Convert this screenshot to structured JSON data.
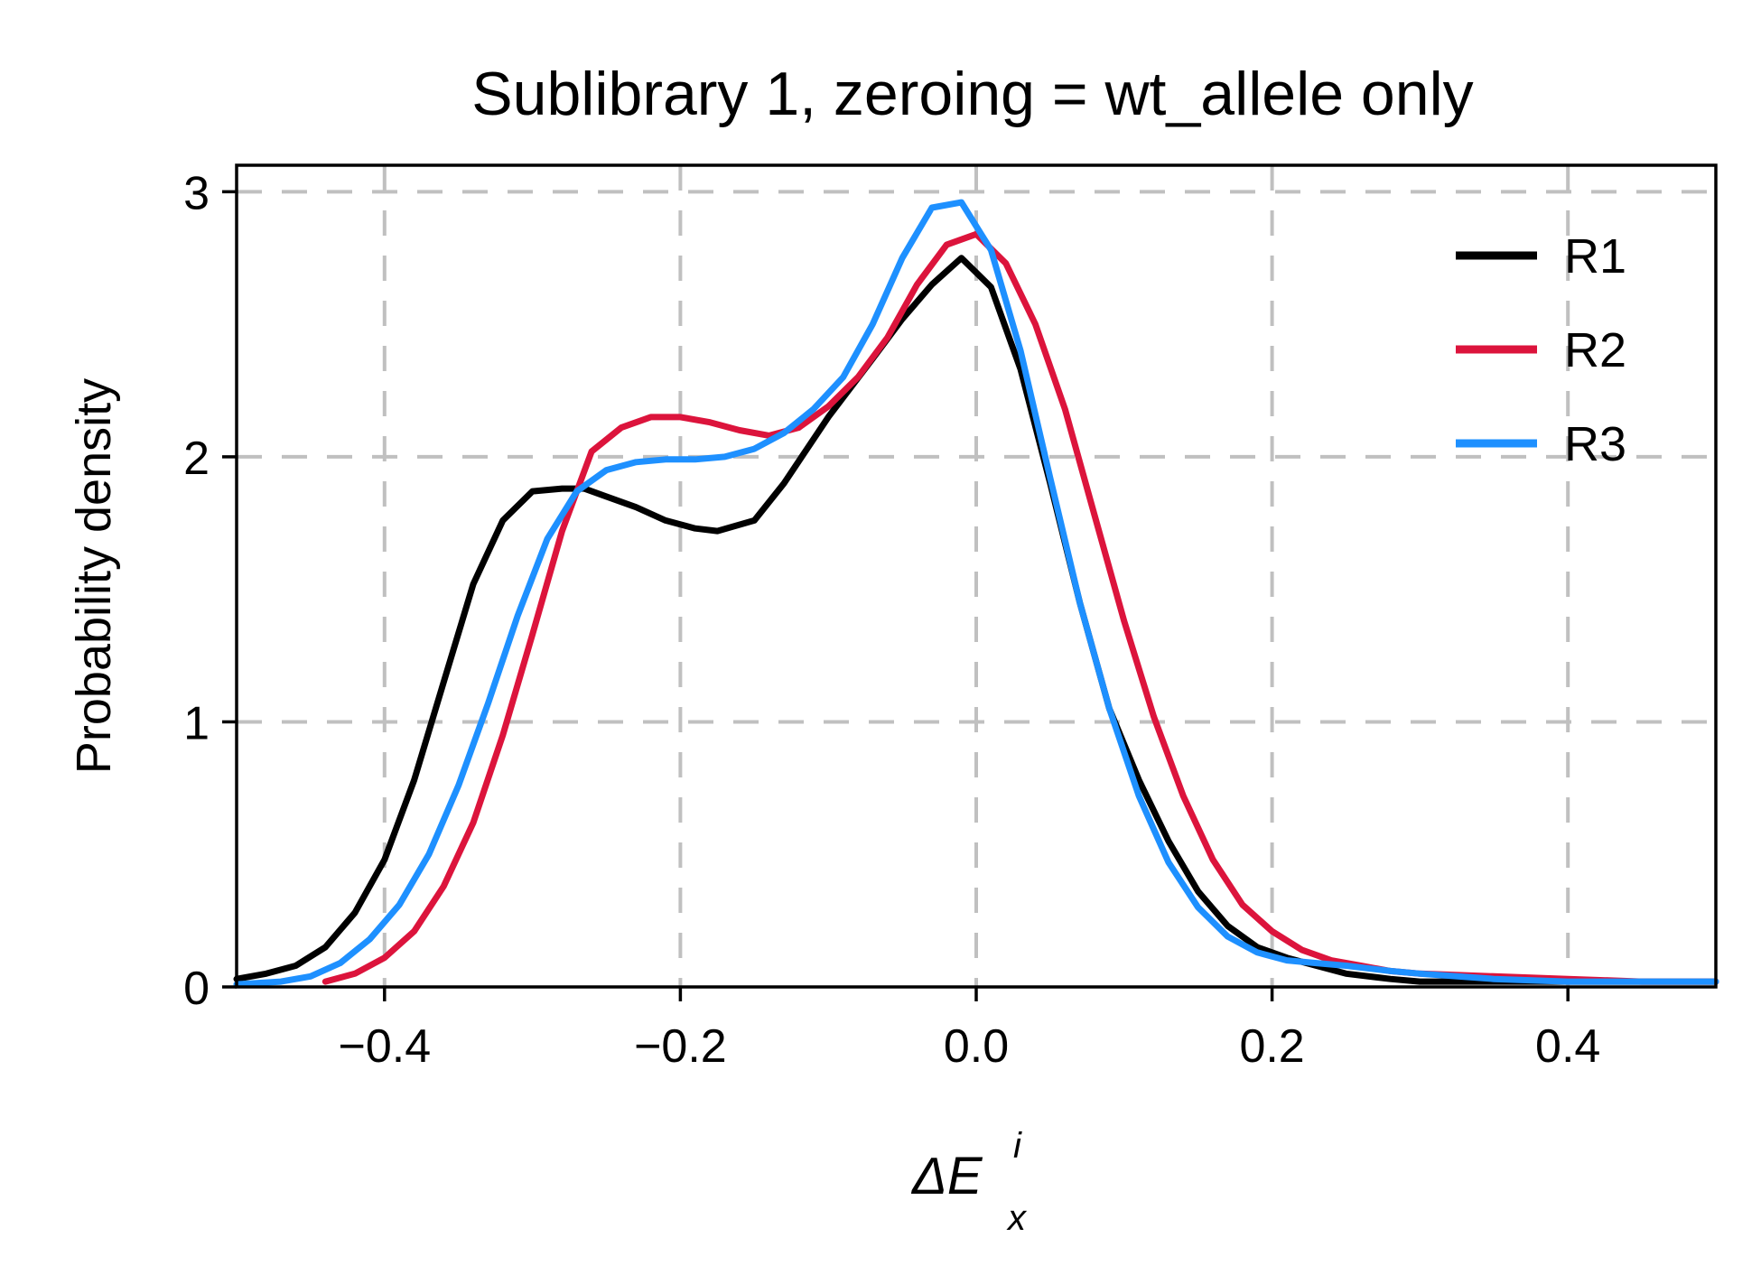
{
  "chart_data": {
    "type": "line",
    "title": "Sublibrary 1, zeroing = wt_allele only",
    "xlabel": {
      "prefix": "ΔE",
      "sub": "x",
      "sup": "i"
    },
    "ylabel": "Probability density",
    "xlim": [
      -0.5,
      0.5
    ],
    "ylim": [
      0,
      3.1
    ],
    "xticks": [
      -0.4,
      -0.2,
      0.0,
      0.2,
      0.4
    ],
    "xtick_labels": [
      "−0.4",
      "−0.2",
      "0.0",
      "0.2",
      "0.4"
    ],
    "yticks": [
      0,
      1,
      2,
      3
    ],
    "ytick_labels": [
      "0",
      "1",
      "2",
      "3"
    ],
    "grid": true,
    "legend_position": "top-right",
    "series": [
      {
        "name": "R1",
        "color": "#000000",
        "x": [
          -0.5,
          -0.48,
          -0.46,
          -0.44,
          -0.42,
          -0.4,
          -0.38,
          -0.36,
          -0.34,
          -0.32,
          -0.3,
          -0.28,
          -0.265,
          -0.25,
          -0.23,
          -0.21,
          -0.19,
          -0.175,
          -0.15,
          -0.13,
          -0.1,
          -0.07,
          -0.05,
          -0.03,
          -0.01,
          0.01,
          0.03,
          0.05,
          0.07,
          0.09,
          0.11,
          0.13,
          0.15,
          0.17,
          0.19,
          0.21,
          0.23,
          0.25,
          0.28,
          0.3,
          0.35,
          0.4,
          0.45,
          0.5
        ],
        "y": [
          0.03,
          0.05,
          0.08,
          0.15,
          0.28,
          0.48,
          0.78,
          1.15,
          1.52,
          1.76,
          1.87,
          1.88,
          1.88,
          1.85,
          1.81,
          1.76,
          1.73,
          1.72,
          1.76,
          1.9,
          2.15,
          2.37,
          2.52,
          2.65,
          2.75,
          2.64,
          2.33,
          1.9,
          1.45,
          1.05,
          0.78,
          0.55,
          0.36,
          0.23,
          0.15,
          0.11,
          0.08,
          0.05,
          0.03,
          0.02,
          0.02,
          0.02,
          0.02,
          0.02
        ]
      },
      {
        "name": "R2",
        "color": "#dc143c",
        "x": [
          -0.44,
          -0.42,
          -0.4,
          -0.38,
          -0.36,
          -0.34,
          -0.32,
          -0.3,
          -0.28,
          -0.26,
          -0.24,
          -0.22,
          -0.2,
          -0.18,
          -0.16,
          -0.14,
          -0.12,
          -0.1,
          -0.08,
          -0.06,
          -0.04,
          -0.02,
          0.0,
          0.02,
          0.04,
          0.06,
          0.08,
          0.1,
          0.12,
          0.14,
          0.16,
          0.18,
          0.2,
          0.22,
          0.24,
          0.26,
          0.28,
          0.3,
          0.35,
          0.4,
          0.45,
          0.5
        ],
        "y": [
          0.02,
          0.05,
          0.11,
          0.21,
          0.38,
          0.62,
          0.95,
          1.33,
          1.72,
          2.02,
          2.11,
          2.15,
          2.15,
          2.13,
          2.1,
          2.08,
          2.11,
          2.19,
          2.3,
          2.45,
          2.65,
          2.8,
          2.84,
          2.73,
          2.5,
          2.18,
          1.78,
          1.38,
          1.02,
          0.72,
          0.48,
          0.31,
          0.21,
          0.14,
          0.1,
          0.08,
          0.06,
          0.05,
          0.04,
          0.03,
          0.02,
          0.02
        ]
      },
      {
        "name": "R3",
        "color": "#1e90ff",
        "x": [
          -0.5,
          -0.47,
          -0.45,
          -0.43,
          -0.41,
          -0.39,
          -0.37,
          -0.35,
          -0.33,
          -0.31,
          -0.29,
          -0.27,
          -0.25,
          -0.23,
          -0.21,
          -0.19,
          -0.17,
          -0.15,
          -0.13,
          -0.11,
          -0.09,
          -0.07,
          -0.05,
          -0.03,
          -0.01,
          0.01,
          0.03,
          0.05,
          0.07,
          0.09,
          0.11,
          0.13,
          0.15,
          0.17,
          0.19,
          0.21,
          0.23,
          0.25,
          0.28,
          0.3,
          0.35,
          0.4,
          0.45,
          0.5
        ],
        "y": [
          0.01,
          0.02,
          0.04,
          0.09,
          0.18,
          0.31,
          0.5,
          0.76,
          1.07,
          1.4,
          1.69,
          1.87,
          1.95,
          1.98,
          1.99,
          1.99,
          2.0,
          2.03,
          2.09,
          2.18,
          2.3,
          2.5,
          2.75,
          2.94,
          2.96,
          2.78,
          2.4,
          1.92,
          1.45,
          1.05,
          0.72,
          0.47,
          0.3,
          0.19,
          0.13,
          0.1,
          0.09,
          0.08,
          0.06,
          0.05,
          0.03,
          0.02,
          0.02,
          0.02
        ]
      }
    ]
  }
}
